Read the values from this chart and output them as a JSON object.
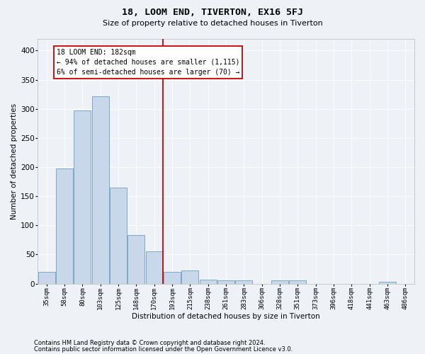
{
  "title": "18, LOOM END, TIVERTON, EX16 5FJ",
  "subtitle": "Size of property relative to detached houses in Tiverton",
  "xlabel": "Distribution of detached houses by size in Tiverton",
  "ylabel": "Number of detached properties",
  "bar_color": "#c8d8ea",
  "bar_edge_color": "#7aaac8",
  "background_color": "#eef2f7",
  "grid_color": "#ffffff",
  "categories": [
    "35sqm",
    "58sqm",
    "80sqm",
    "103sqm",
    "125sqm",
    "148sqm",
    "170sqm",
    "193sqm",
    "215sqm",
    "238sqm",
    "261sqm",
    "283sqm",
    "306sqm",
    "328sqm",
    "351sqm",
    "373sqm",
    "396sqm",
    "418sqm",
    "441sqm",
    "463sqm",
    "486sqm"
  ],
  "values": [
    20,
    197,
    297,
    322,
    165,
    83,
    55,
    20,
    22,
    7,
    5,
    5,
    0,
    5,
    5,
    0,
    0,
    0,
    0,
    3,
    0
  ],
  "ylim": [
    0,
    420
  ],
  "yticks": [
    0,
    50,
    100,
    150,
    200,
    250,
    300,
    350,
    400
  ],
  "property_line_bin": 7,
  "annotation_text": "18 LOOM END: 182sqm\n← 94% of detached houses are smaller (1,115)\n6% of semi-detached houses are larger (70) →",
  "footnote1": "Contains HM Land Registry data © Crown copyright and database right 2024.",
  "footnote2": "Contains public sector information licensed under the Open Government Licence v3.0."
}
